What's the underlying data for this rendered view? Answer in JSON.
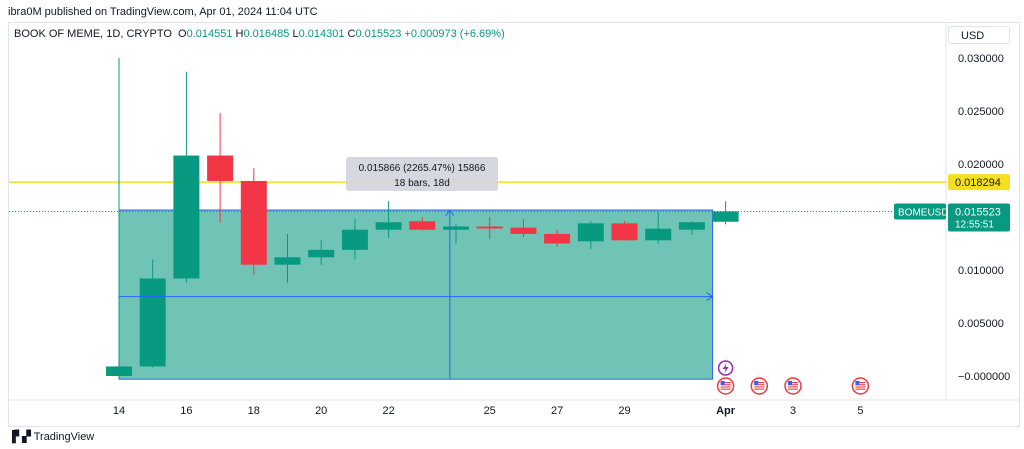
{
  "publisher_line": "ibra0M published on TradingView.com, Apr 01, 2024 11:04 UTC",
  "legend": {
    "symbol": "BOOK OF MEME, 1D, CRYPTO",
    "o_label": "O",
    "o_value": "0.014551",
    "h_label": "H",
    "h_value": "0.016485",
    "l_label": "L",
    "l_value": "0.014301",
    "c_label": "C",
    "c_value": "0.015523",
    "change": "+0.000973 (+6.69%)"
  },
  "currency_button": "USD",
  "footer_brand": "TradingView",
  "colors": {
    "up": "#089981",
    "down": "#f23645",
    "hline": "#f5e020",
    "measure_fill": "#089981",
    "measure_line": "#2962ff"
  },
  "chart_data": {
    "type": "candlestick",
    "title": "BOOK OF MEME, 1D, CRYPTO",
    "xlabel": "",
    "ylabel": "",
    "ylim": [
      -0.0005,
      0.0315
    ],
    "grid": false,
    "x_tick_labels": [
      "14",
      "16",
      "18",
      "20",
      "22",
      "25",
      "27",
      "29",
      "Apr",
      "3",
      "5"
    ],
    "y_tick_labels": [
      "0.030000",
      "0.025000",
      "0.020000",
      "0.015000",
      "0.010000",
      "0.005000",
      "−0.000000"
    ],
    "candles": [
      {
        "date": "2024-03-14",
        "open": 0.0,
        "high": 0.03,
        "low": -0.0002,
        "close": 0.0009
      },
      {
        "date": "2024-03-15",
        "open": 0.0009,
        "high": 0.011,
        "low": 0.0008,
        "close": 0.0092
      },
      {
        "date": "2024-03-16",
        "open": 0.0092,
        "high": 0.0287,
        "low": 0.0088,
        "close": 0.0208
      },
      {
        "date": "2024-03-17",
        "open": 0.0208,
        "high": 0.0248,
        "low": 0.0145,
        "close": 0.0184
      },
      {
        "date": "2024-03-18",
        "open": 0.0184,
        "high": 0.0196,
        "low": 0.0095,
        "close": 0.0105
      },
      {
        "date": "2024-03-19",
        "open": 0.0105,
        "high": 0.0134,
        "low": 0.0088,
        "close": 0.0112
      },
      {
        "date": "2024-03-20",
        "open": 0.0112,
        "high": 0.0128,
        "low": 0.0105,
        "close": 0.0119
      },
      {
        "date": "2024-03-21",
        "open": 0.0119,
        "high": 0.0148,
        "low": 0.011,
        "close": 0.0138
      },
      {
        "date": "2024-03-22",
        "open": 0.0138,
        "high": 0.0165,
        "low": 0.013,
        "close": 0.0145
      },
      {
        "date": "2024-03-23",
        "open": 0.0146,
        "high": 0.015,
        "low": 0.0137,
        "close": 0.0138
      },
      {
        "date": "2024-03-24",
        "open": 0.0138,
        "high": 0.0143,
        "low": 0.0125,
        "close": 0.0141
      },
      {
        "date": "2024-03-25",
        "open": 0.0141,
        "high": 0.015,
        "low": 0.0129,
        "close": 0.014
      },
      {
        "date": "2024-03-26",
        "open": 0.014,
        "high": 0.0148,
        "low": 0.0131,
        "close": 0.0134
      },
      {
        "date": "2024-03-27",
        "open": 0.0134,
        "high": 0.0138,
        "low": 0.0122,
        "close": 0.0125
      },
      {
        "date": "2024-03-28",
        "open": 0.0127,
        "high": 0.0146,
        "low": 0.012,
        "close": 0.0144
      },
      {
        "date": "2024-03-29",
        "open": 0.0144,
        "high": 0.0146,
        "low": 0.0128,
        "close": 0.0128
      },
      {
        "date": "2024-03-30",
        "open": 0.0128,
        "high": 0.0155,
        "low": 0.0125,
        "close": 0.0139
      },
      {
        "date": "2024-03-31",
        "open": 0.0138,
        "high": 0.0146,
        "low": 0.0133,
        "close": 0.0145
      },
      {
        "date": "2024-04-01",
        "open": 0.014551,
        "high": 0.016485,
        "low": 0.014301,
        "close": 0.015523
      }
    ],
    "horizontal_line": {
      "value": 0.018294,
      "label": "0.018294"
    },
    "last_price": {
      "symbol": "BOMEUSD",
      "value": "0.015523",
      "countdown": "12:55:51"
    },
    "measure": {
      "from_date": "2024-03-14",
      "to_date": "2024-04-01",
      "low": -0.0003,
      "high": 0.01566,
      "line1": "0.015866 (2265.47%) 15866",
      "line2": "18 bars, 18d"
    },
    "event_markers": [
      "2024-04-01",
      "2024-04-02",
      "2024-04-03",
      "2024-04-05"
    ]
  }
}
